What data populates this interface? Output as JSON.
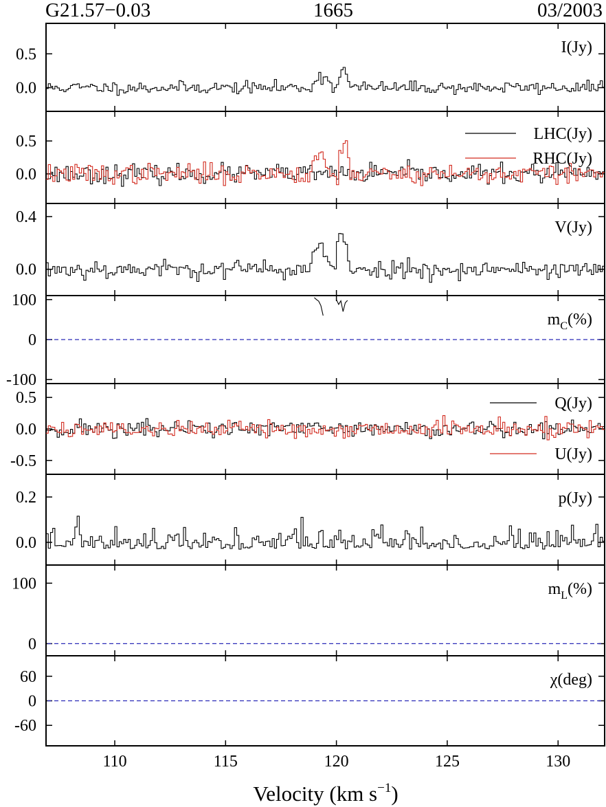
{
  "header": {
    "source": "G21.57−0.03",
    "frequency": "1665",
    "date": "03/2003"
  },
  "colors": {
    "black_series": "#000000",
    "red_series": "#d22a1e",
    "zero_line": "#2a2ab8"
  },
  "chart_data": {
    "type": "line",
    "x_axis": {
      "label_prefix": "Velocity (km s",
      "label_exp": "−1",
      "label_suffix": ")",
      "range": [
        106.9,
        132.1
      ],
      "ticks": [
        110,
        115,
        120,
        125,
        130
      ],
      "tick_labels": [
        "110",
        "115",
        "120",
        "125",
        "130"
      ]
    },
    "panels": [
      {
        "key": "I",
        "label_main": "I(Jy)",
        "ylim": [
          -0.35,
          0.95
        ],
        "ticks": [
          0.0,
          0.5
        ],
        "tick_labels": [
          "0.0",
          "0.5"
        ],
        "series": [
          {
            "name": "I(Jy)",
            "color": "black",
            "noise": 0.045,
            "seed": 11,
            "features": [
              {
                "center": 119.3,
                "width": 0.45,
                "amp": 0.16
              },
              {
                "center": 120.25,
                "width": 0.28,
                "amp": 0.25
              }
            ]
          }
        ]
      },
      {
        "key": "LR",
        "ylim": [
          -0.45,
          0.95
        ],
        "ticks": [
          0.0,
          0.5
        ],
        "tick_labels": [
          "0.0",
          "0.5"
        ],
        "series": [
          {
            "name": "LHC(Jy)",
            "color": "black",
            "noise": 0.07,
            "seed": 23,
            "features": []
          },
          {
            "name": "RHC(Jy)",
            "color": "red",
            "noise": 0.075,
            "seed": 37,
            "features": [
              {
                "center": 119.2,
                "width": 0.35,
                "amp": 0.32
              },
              {
                "center": 120.3,
                "width": 0.25,
                "amp": 0.44
              }
            ]
          }
        ]
      },
      {
        "key": "V",
        "label_main": "V(Jy)",
        "ylim": [
          -0.2,
          0.5
        ],
        "ticks": [
          0.0,
          0.4
        ],
        "tick_labels": [
          "0.0",
          "0.4"
        ],
        "series": [
          {
            "name": "V(Jy)",
            "color": "black",
            "noise": 0.035,
            "seed": 53,
            "features": [
              {
                "center": 119.2,
                "width": 0.4,
                "amp": 0.18
              },
              {
                "center": 120.2,
                "width": 0.3,
                "amp": 0.24
              }
            ]
          }
        ]
      },
      {
        "key": "mc",
        "label_main": "m",
        "label_sub": "C",
        "label_tail": "(%)",
        "ylim": [
          -110,
          110
        ],
        "ticks": [
          -100,
          0,
          100
        ],
        "tick_labels": [
          "-100",
          "0",
          "100"
        ],
        "zero_line": true,
        "segments": [
          {
            "x": [
              119.0,
              119.1,
              119.2,
              119.3,
              119.4
            ],
            "y": [
              105,
              100,
              96,
              85,
              60
            ]
          },
          {
            "x": [
              120.0,
              120.1,
              120.2,
              120.3,
              120.4,
              120.5
            ],
            "y": [
              100,
              88,
              97,
              70,
              92,
              98
            ]
          }
        ]
      },
      {
        "key": "QU",
        "ylim": [
          -0.72,
          0.72
        ],
        "ticks": [
          -0.5,
          0.0,
          0.5
        ],
        "tick_labels": [
          "-0.5",
          "0.0",
          "0.5"
        ],
        "series": [
          {
            "name": "Q(Jy)",
            "color": "black",
            "noise": 0.07,
            "seed": 71,
            "features": []
          },
          {
            "name": "U(Jy)",
            "color": "red",
            "noise": 0.07,
            "seed": 89,
            "features": []
          }
        ]
      },
      {
        "key": "p",
        "label_main": "p(Jy)",
        "ylim": [
          -0.1,
          0.3
        ],
        "ticks": [
          0.0,
          0.2
        ],
        "tick_labels": [
          "0.0",
          "0.2"
        ],
        "series": [
          {
            "name": "p(Jy)",
            "color": "black",
            "noise": 0.05,
            "seed": 97,
            "positive": true,
            "features": []
          }
        ]
      },
      {
        "key": "ml",
        "label_main": "m",
        "label_sub": "L",
        "label_tail": "(%)",
        "ylim": [
          -20,
          130
        ],
        "ticks": [
          0,
          100
        ],
        "tick_labels": [
          "0",
          "100"
        ],
        "zero_line": true,
        "segments": []
      },
      {
        "key": "chi",
        "label_main": "χ(deg)",
        "ylim": [
          -110,
          110
        ],
        "ticks": [
          -60,
          0,
          60
        ],
        "tick_labels": [
          "-60",
          "0",
          "60"
        ],
        "zero_line": true,
        "segments": []
      }
    ]
  }
}
